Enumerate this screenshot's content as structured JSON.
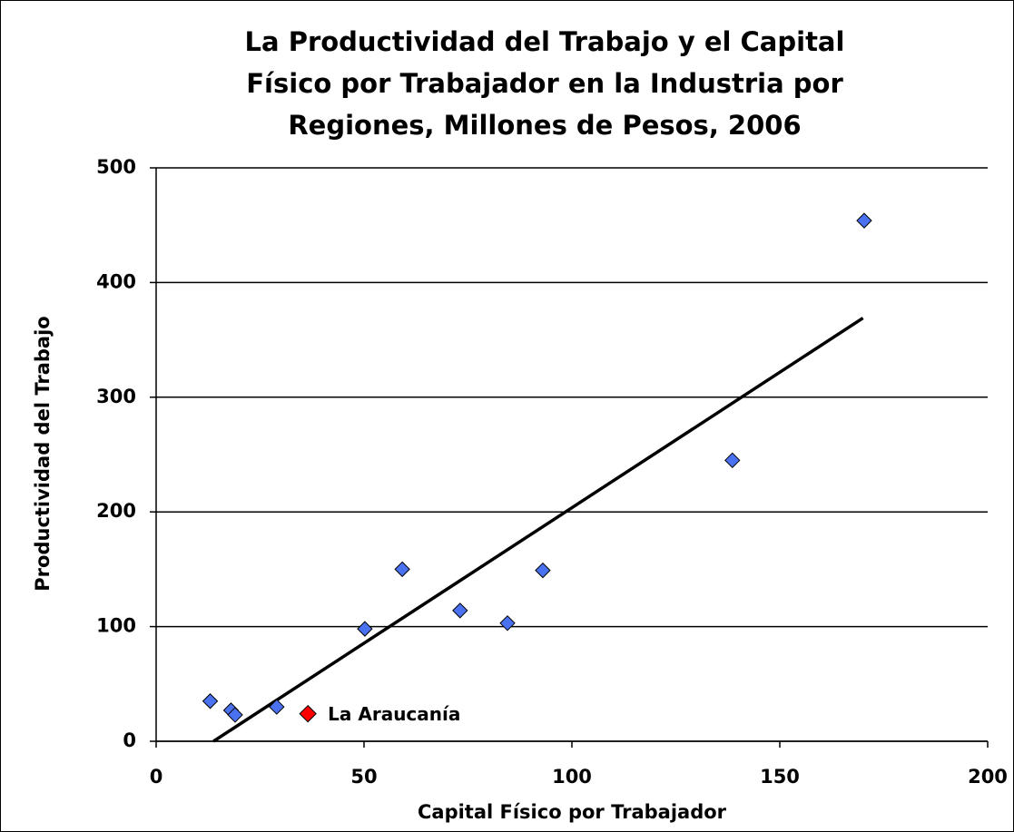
{
  "chart_data": {
    "type": "scatter",
    "title": [
      "La Productividad del Trabajo y el Capital",
      "Físico por Trabajador en la Industria por",
      "Regiones, Millones de Pesos, 2006"
    ],
    "x_label": "Capital Físico por Trabajador",
    "y_label": "Productividad del Trabajo",
    "xlim": [
      0,
      200
    ],
    "xticks": [
      0,
      50,
      100,
      150,
      200
    ],
    "ylim": [
      0,
      500
    ],
    "yticks": [
      0,
      100,
      200,
      300,
      400,
      500
    ],
    "grid": true,
    "series": [
      {
        "color": "#4a72f0",
        "x": [
          13,
          18,
          19,
          29,
          50.2,
          59.2,
          73.1,
          84.5,
          93,
          138.6,
          170.3
        ],
        "values": [
          35,
          27,
          23,
          30,
          98,
          150,
          114,
          103,
          149,
          245,
          454
        ]
      }
    ],
    "highlight": {
      "label": "La Araucanía",
      "color": "#ff0000",
      "x": 36.5,
      "y": 24
    },
    "trendline": {
      "color": "#000000",
      "x": [
        13.8,
        170
      ],
      "y": [
        0,
        369
      ]
    }
  }
}
